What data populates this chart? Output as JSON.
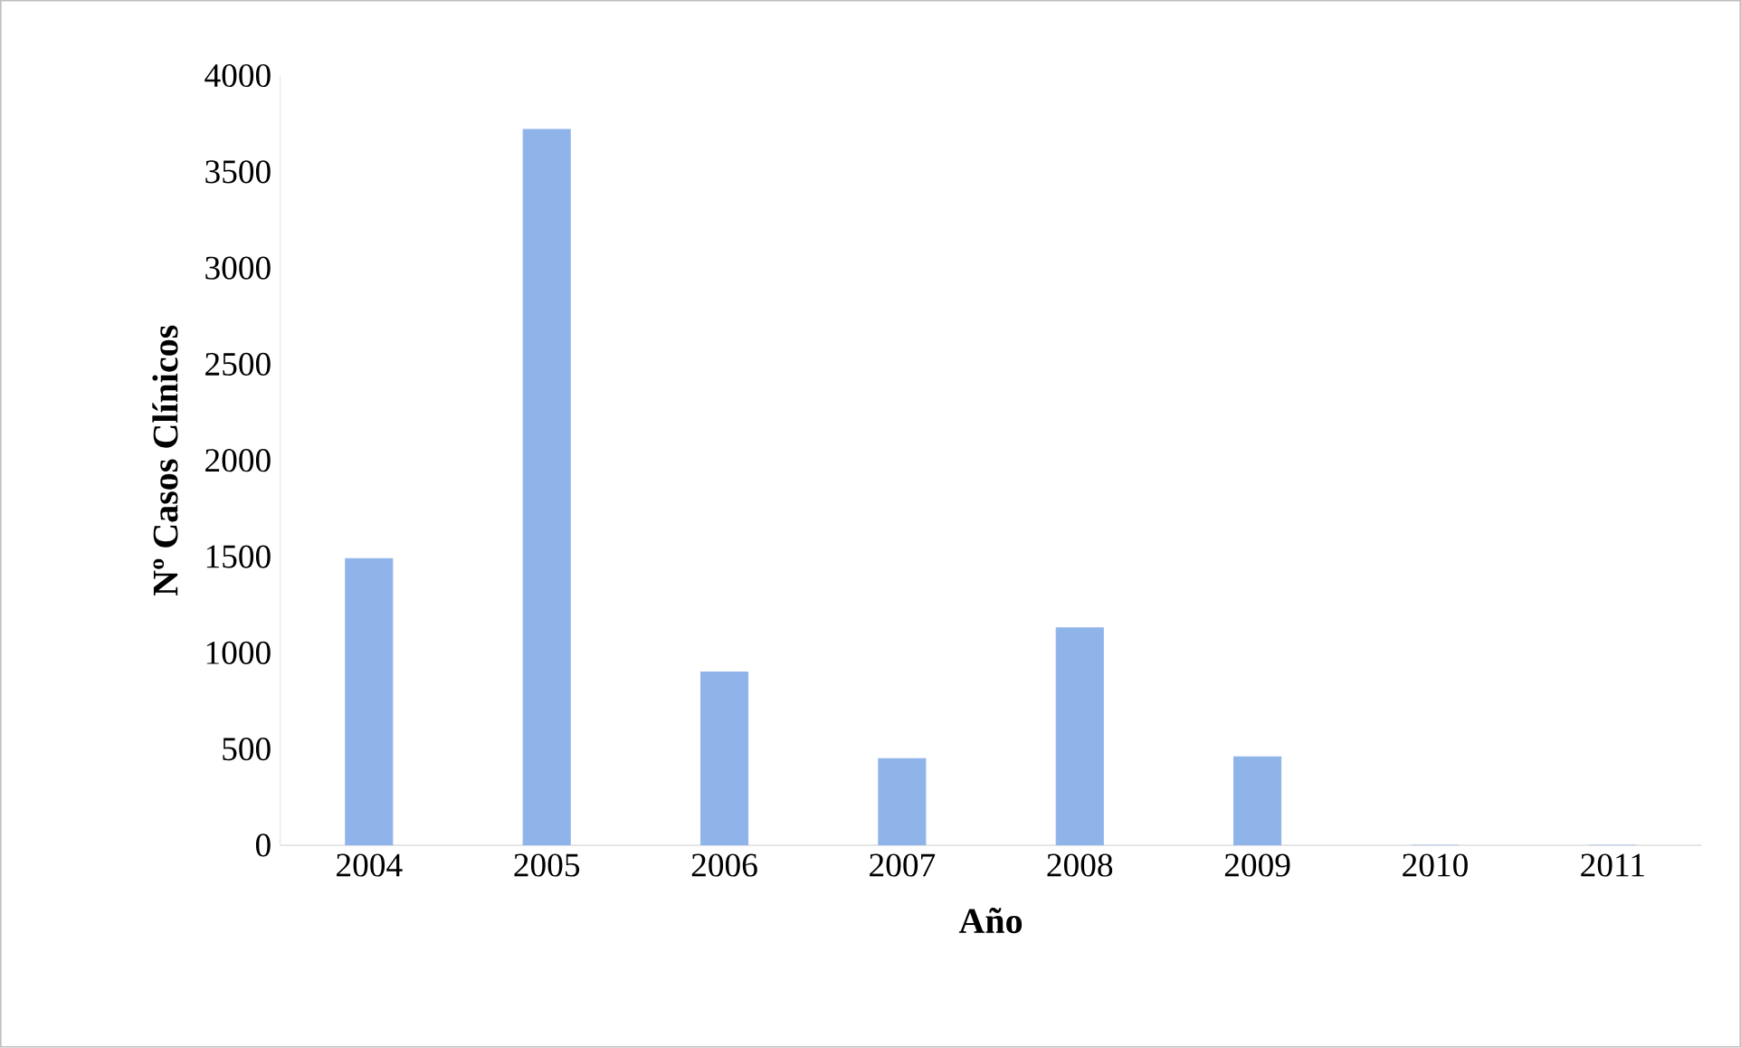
{
  "chart_data": {
    "type": "bar",
    "xlabel": "Año",
    "ylabel": "Nº Casos Clínicos",
    "categories": [
      "2004",
      "2005",
      "2006",
      "2007",
      "2008",
      "2009",
      "2010",
      "2011"
    ],
    "values": [
      1490,
      3720,
      900,
      450,
      1130,
      460,
      0,
      0
    ],
    "color": "#8fb4ea",
    "ylim": [
      0,
      4000
    ],
    "yticks": [
      0,
      500,
      1000,
      1500,
      2000,
      2500,
      3000,
      3500,
      4000
    ],
    "grid": false
  }
}
